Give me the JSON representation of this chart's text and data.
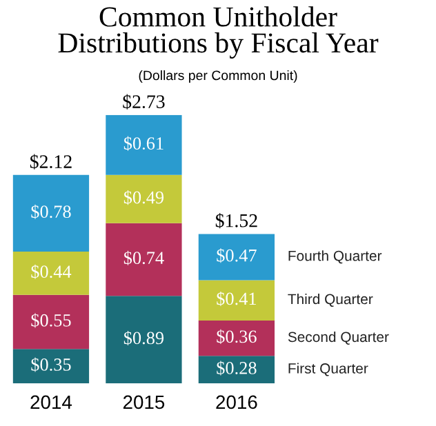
{
  "chart_data": {
    "type": "bar",
    "title": "Common Unitholder\nDistributions by Fiscal Year",
    "subtitle": "(Dollars per Common Unit)",
    "categories": [
      "2014",
      "2015",
      "2016"
    ],
    "stacked": true,
    "legend": "right",
    "series": [
      {
        "name": "First Quarter",
        "color": "#1b6d79",
        "values": [
          0.35,
          0.89,
          0.28
        ],
        "value_labels": [
          "$0.35",
          "$0.89",
          "$0.28"
        ]
      },
      {
        "name": "Second Quarter",
        "color": "#b3305a",
        "values": [
          0.55,
          0.74,
          0.36
        ],
        "value_labels": [
          "$0.55",
          "$0.74",
          "$0.36"
        ]
      },
      {
        "name": "Third Quarter",
        "color": "#c4c93a",
        "values": [
          0.44,
          0.49,
          0.41
        ],
        "value_labels": [
          "$0.44",
          "$0.49",
          "$0.41"
        ]
      },
      {
        "name": "Fourth Quarter",
        "color": "#2a9bcf",
        "values": [
          0.78,
          0.61,
          0.47
        ],
        "value_labels": [
          "$0.78",
          "$0.61",
          "$0.47"
        ]
      }
    ],
    "totals": [
      "$2.12",
      "$2.73",
      "$1.52"
    ]
  }
}
